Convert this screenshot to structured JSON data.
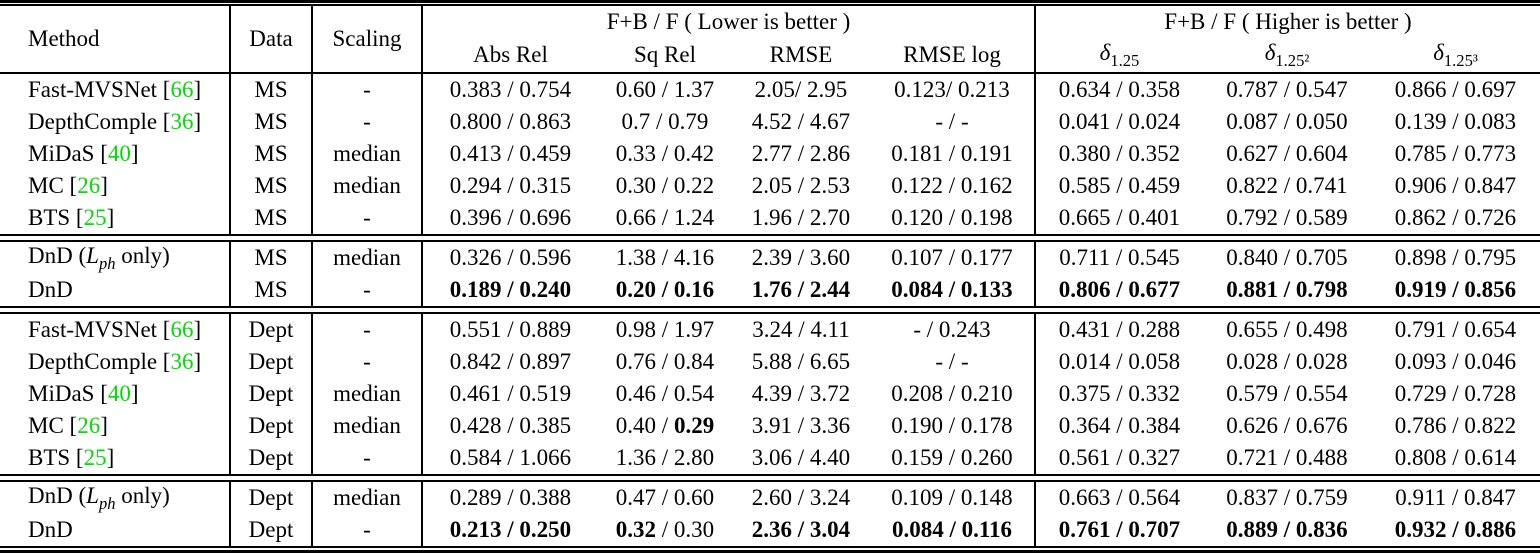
{
  "table": {
    "colors": {
      "citation_green": "#00dd00"
    },
    "header": {
      "method": "Method",
      "data": "Data",
      "scaling": "Scaling",
      "group_lower": "F+B / F ( Lower is better )",
      "group_higher": "F+B / F ( Higher is better )",
      "metric_cols": [
        "Abs Rel",
        "Sq Rel",
        "RMSE",
        "RMSE log"
      ],
      "delta_cols": [
        {
          "base": "δ",
          "sub": "1.25"
        },
        {
          "base": "δ",
          "sub": "1.25²"
        },
        {
          "base": "δ",
          "sub": "1.25³"
        }
      ]
    },
    "sections": [
      {
        "rows": [
          {
            "method": [
              {
                "t": "Fast-MVSNet ["
              },
              {
                "t": "66",
                "c": "cite"
              },
              {
                "t": "]"
              }
            ],
            "data": "MS",
            "scaling": "-",
            "cells": [
              [
                {
                  "t": "0.383 / 0.754"
                }
              ],
              [
                {
                  "t": "0.60 / 1.37"
                }
              ],
              [
                {
                  "t": "2.05/ 2.95"
                }
              ],
              [
                {
                  "t": "0.123/ 0.213"
                }
              ],
              [
                {
                  "t": "0.634 / 0.358"
                }
              ],
              [
                {
                  "t": "0.787 / 0.547"
                }
              ],
              [
                {
                  "t": "0.866 / 0.697"
                }
              ]
            ]
          },
          {
            "method": [
              {
                "t": "DepthComple ["
              },
              {
                "t": "36",
                "c": "cite"
              },
              {
                "t": "]"
              }
            ],
            "data": "MS",
            "scaling": "-",
            "cells": [
              [
                {
                  "t": "0.800 / 0.863"
                }
              ],
              [
                {
                  "t": "0.7 / 0.79"
                }
              ],
              [
                {
                  "t": "4.52 / 4.67"
                }
              ],
              [
                {
                  "t": "- / -"
                }
              ],
              [
                {
                  "t": "0.041 / 0.024"
                }
              ],
              [
                {
                  "t": "0.087 / 0.050"
                }
              ],
              [
                {
                  "t": "0.139 / 0.083"
                }
              ]
            ]
          },
          {
            "method": [
              {
                "t": "MiDaS ["
              },
              {
                "t": "40",
                "c": "cite"
              },
              {
                "t": "]"
              }
            ],
            "data": "MS",
            "scaling": "median",
            "cells": [
              [
                {
                  "t": "0.413 / 0.459"
                }
              ],
              [
                {
                  "t": "0.33 / 0.42"
                }
              ],
              [
                {
                  "t": "2.77 / 2.86"
                }
              ],
              [
                {
                  "t": "0.181 / 0.191"
                }
              ],
              [
                {
                  "t": "0.380 / 0.352"
                }
              ],
              [
                {
                  "t": "0.627 / 0.604"
                }
              ],
              [
                {
                  "t": "0.785 / 0.773"
                }
              ]
            ]
          },
          {
            "method": [
              {
                "t": "MC ["
              },
              {
                "t": "26",
                "c": "cite"
              },
              {
                "t": "]"
              }
            ],
            "data": "MS",
            "scaling": "median",
            "cells": [
              [
                {
                  "t": "0.294 / 0.315"
                }
              ],
              [
                {
                  "t": "0.30 / 0.22"
                }
              ],
              [
                {
                  "t": "2.05 / 2.53"
                }
              ],
              [
                {
                  "t": "0.122 / 0.162"
                }
              ],
              [
                {
                  "t": "0.585 / 0.459"
                }
              ],
              [
                {
                  "t": "0.822 / 0.741"
                }
              ],
              [
                {
                  "t": "0.906 / 0.847"
                }
              ]
            ]
          },
          {
            "method": [
              {
                "t": "BTS ["
              },
              {
                "t": "25",
                "c": "cite"
              },
              {
                "t": "]"
              }
            ],
            "data": "MS",
            "scaling": "-",
            "cells": [
              [
                {
                  "t": "0.396 / 0.696"
                }
              ],
              [
                {
                  "t": "0.66 / 1.24"
                }
              ],
              [
                {
                  "t": "1.96 / 2.70"
                }
              ],
              [
                {
                  "t": "0.120 / 0.198"
                }
              ],
              [
                {
                  "t": "0.665 / 0.401"
                }
              ],
              [
                {
                  "t": "0.792 / 0.589"
                }
              ],
              [
                {
                  "t": "0.862 / 0.726"
                }
              ]
            ]
          }
        ]
      },
      {
        "rows": [
          {
            "method": [
              {
                "t": "DnD ("
              },
              {
                "t": "L",
                "c": "math"
              },
              {
                "t": "ph",
                "c": "subm"
              },
              {
                "t": " only)"
              }
            ],
            "data": "MS",
            "scaling": "median",
            "cells": [
              [
                {
                  "t": "0.326 / 0.596"
                }
              ],
              [
                {
                  "t": "1.38 / 4.16"
                }
              ],
              [
                {
                  "t": "2.39 / 3.60"
                }
              ],
              [
                {
                  "t": "0.107 / 0.177"
                }
              ],
              [
                {
                  "t": "0.711 / 0.545"
                }
              ],
              [
                {
                  "t": "0.840 / 0.705"
                }
              ],
              [
                {
                  "t": "0.898 / 0.795"
                }
              ]
            ]
          },
          {
            "method": [
              {
                "t": "DnD"
              }
            ],
            "data": "MS",
            "scaling": "-",
            "cells": [
              [
                {
                  "t": "0.189 / 0.240",
                  "c": "bold"
                }
              ],
              [
                {
                  "t": "0.20 / 0.16",
                  "c": "bold"
                }
              ],
              [
                {
                  "t": "1.76 / 2.44",
                  "c": "bold"
                }
              ],
              [
                {
                  "t": "0.084 / 0.133",
                  "c": "bold"
                }
              ],
              [
                {
                  "t": "0.806 / 0.677",
                  "c": "bold"
                }
              ],
              [
                {
                  "t": "0.881 / 0.798",
                  "c": "bold"
                }
              ],
              [
                {
                  "t": "0.919 / 0.856",
                  "c": "bold"
                }
              ]
            ]
          }
        ]
      },
      {
        "rows": [
          {
            "method": [
              {
                "t": "Fast-MVSNet ["
              },
              {
                "t": "66",
                "c": "cite"
              },
              {
                "t": "]"
              }
            ],
            "data": "Dept",
            "scaling": "-",
            "cells": [
              [
                {
                  "t": "0.551 / 0.889"
                }
              ],
              [
                {
                  "t": "0.98 / 1.97"
                }
              ],
              [
                {
                  "t": "3.24 / 4.11"
                }
              ],
              [
                {
                  "t": "- / 0.243"
                }
              ],
              [
                {
                  "t": "0.431 / 0.288"
                }
              ],
              [
                {
                  "t": "0.655 / 0.498"
                }
              ],
              [
                {
                  "t": "0.791 / 0.654"
                }
              ]
            ]
          },
          {
            "method": [
              {
                "t": "DepthComple ["
              },
              {
                "t": "36",
                "c": "cite"
              },
              {
                "t": "]"
              }
            ],
            "data": "Dept",
            "scaling": "-",
            "cells": [
              [
                {
                  "t": "0.842 / 0.897"
                }
              ],
              [
                {
                  "t": "0.76 / 0.84"
                }
              ],
              [
                {
                  "t": "5.88 / 6.65"
                }
              ],
              [
                {
                  "t": "- / -"
                }
              ],
              [
                {
                  "t": "0.014 / 0.058"
                }
              ],
              [
                {
                  "t": "0.028 / 0.028"
                }
              ],
              [
                {
                  "t": "0.093 / 0.046"
                }
              ]
            ]
          },
          {
            "method": [
              {
                "t": "MiDaS ["
              },
              {
                "t": "40",
                "c": "cite"
              },
              {
                "t": "]"
              }
            ],
            "data": "Dept",
            "scaling": "median",
            "cells": [
              [
                {
                  "t": "0.461 / 0.519"
                }
              ],
              [
                {
                  "t": "0.46 / 0.54"
                }
              ],
              [
                {
                  "t": "4.39 / 3.72"
                }
              ],
              [
                {
                  "t": "0.208 / 0.210"
                }
              ],
              [
                {
                  "t": "0.375 / 0.332"
                }
              ],
              [
                {
                  "t": "0.579 / 0.554"
                }
              ],
              [
                {
                  "t": "0.729 / 0.728"
                }
              ]
            ]
          },
          {
            "method": [
              {
                "t": "MC ["
              },
              {
                "t": "26",
                "c": "cite"
              },
              {
                "t": "]"
              }
            ],
            "data": "Dept",
            "scaling": "median",
            "cells": [
              [
                {
                  "t": "0.428 / 0.385"
                }
              ],
              [
                {
                  "t": "0.40 / "
                },
                {
                  "t": "0.29",
                  "c": "bold"
                }
              ],
              [
                {
                  "t": "3.91 / 3.36"
                }
              ],
              [
                {
                  "t": "0.190 / 0.178"
                }
              ],
              [
                {
                  "t": "0.364 / 0.384"
                }
              ],
              [
                {
                  "t": "0.626 / 0.676"
                }
              ],
              [
                {
                  "t": "0.786 / 0.822"
                }
              ]
            ]
          },
          {
            "method": [
              {
                "t": "BTS ["
              },
              {
                "t": "25",
                "c": "cite"
              },
              {
                "t": "]"
              }
            ],
            "data": "Dept",
            "scaling": "-",
            "cells": [
              [
                {
                  "t": "0.584 / 1.066"
                }
              ],
              [
                {
                  "t": "1.36 / 2.80"
                }
              ],
              [
                {
                  "t": "3.06 / 4.40"
                }
              ],
              [
                {
                  "t": "0.159 / 0.260"
                }
              ],
              [
                {
                  "t": "0.561 / 0.327"
                }
              ],
              [
                {
                  "t": "0.721 / 0.488"
                }
              ],
              [
                {
                  "t": "0.808 / 0.614"
                }
              ]
            ]
          }
        ]
      },
      {
        "rows": [
          {
            "method": [
              {
                "t": "DnD ("
              },
              {
                "t": "L",
                "c": "math"
              },
              {
                "t": "ph",
                "c": "subm"
              },
              {
                "t": " only)"
              }
            ],
            "data": "Dept",
            "scaling": "median",
            "cells": [
              [
                {
                  "t": "0.289 / 0.388"
                }
              ],
              [
                {
                  "t": "0.47 / 0.60"
                }
              ],
              [
                {
                  "t": "2.60 / 3.24"
                }
              ],
              [
                {
                  "t": "0.109 / 0.148"
                }
              ],
              [
                {
                  "t": "0.663 / 0.564"
                }
              ],
              [
                {
                  "t": "0.837 / 0.759"
                }
              ],
              [
                {
                  "t": "0.911 / 0.847"
                }
              ]
            ]
          },
          {
            "method": [
              {
                "t": "DnD"
              }
            ],
            "data": "Dept",
            "scaling": "-",
            "cells": [
              [
                {
                  "t": "0.213 / 0.250",
                  "c": "bold"
                }
              ],
              [
                {
                  "t": "0.32",
                  "c": "bold"
                },
                {
                  "t": " / 0.30"
                }
              ],
              [
                {
                  "t": "2.36 / 3.04",
                  "c": "bold"
                }
              ],
              [
                {
                  "t": "0.084 / 0.116",
                  "c": "bold"
                }
              ],
              [
                {
                  "t": "0.761 / 0.707",
                  "c": "bold"
                }
              ],
              [
                {
                  "t": "0.889 / 0.836",
                  "c": "bold"
                }
              ],
              [
                {
                  "t": "0.932 / 0.886",
                  "c": "bold"
                }
              ]
            ]
          }
        ]
      }
    ]
  }
}
